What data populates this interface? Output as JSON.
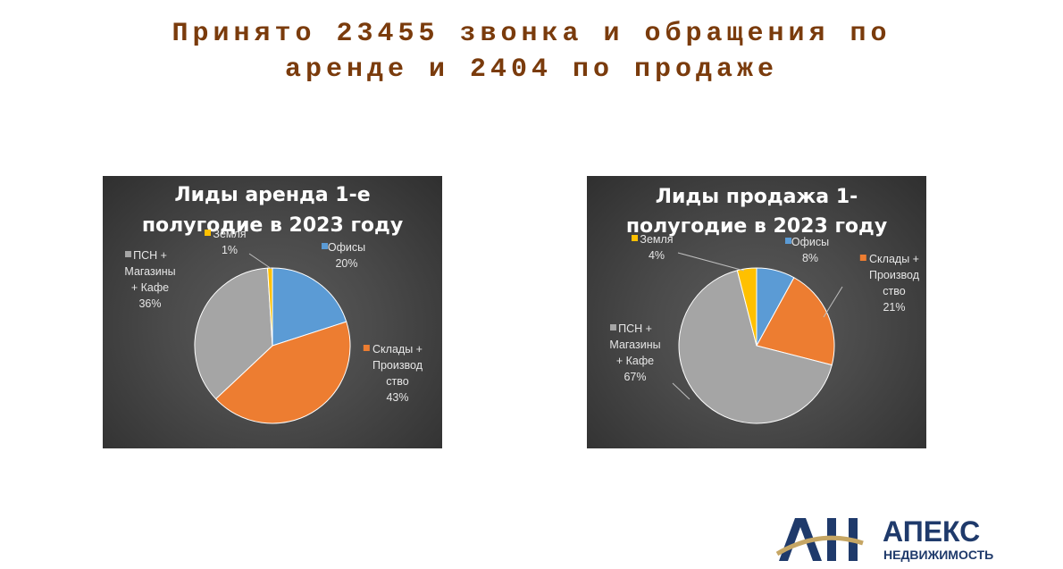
{
  "header": {
    "title_line1": "Принято 23455 звонка и обращения по",
    "title_line2": "аренде и 2404 по продаже"
  },
  "chart_data": [
    {
      "type": "pie",
      "title_lines": [
        "Лиды аренда 1-е",
        "полугодие в 2023 году"
      ],
      "slices": [
        {
          "name": "Офисы",
          "value": 20,
          "label_lines": [
            "Офисы",
            "20%"
          ],
          "color": "#5b9bd5"
        },
        {
          "name": "Склады + Производство",
          "value": 43,
          "label_lines": [
            "Склады +",
            "Производ",
            "ство",
            "43%"
          ],
          "color": "#ed7d31"
        },
        {
          "name": "ПСН + Магазины + Кафе",
          "value": 36,
          "label_lines": [
            "ПСН +",
            "Магазины",
            "+ Кафе",
            "36%"
          ],
          "color": "#a5a5a5"
        },
        {
          "name": "Земля",
          "value": 1,
          "label_lines": [
            "Земля",
            "1%"
          ],
          "color": "#ffc000"
        }
      ]
    },
    {
      "type": "pie",
      "title_lines": [
        "Лиды продажа 1-",
        "полугодие в 2023 году"
      ],
      "slices": [
        {
          "name": "Офисы",
          "value": 8,
          "label_lines": [
            "Офисы",
            "8%"
          ],
          "color": "#5b9bd5"
        },
        {
          "name": "Склады + Производство",
          "value": 21,
          "label_lines": [
            "Склады +",
            "Производ",
            "ство",
            "21%"
          ],
          "color": "#ed7d31"
        },
        {
          "name": "ПСН + Магазины + Кафе",
          "value": 67,
          "label_lines": [
            "ПСН +",
            "Магазины",
            "+ Кафе",
            "67%"
          ],
          "color": "#a5a5a5"
        },
        {
          "name": "Земля",
          "value": 4,
          "label_lines": [
            "Земля",
            "4%"
          ],
          "color": "#ffc000"
        }
      ]
    }
  ],
  "logo": {
    "mark": "АН",
    "brand": "АПЕКС",
    "sub": "НЕДВИЖИМОСТЬ",
    "colors": {
      "navy": "#1f3a6b",
      "gold": "#c6a664"
    }
  }
}
